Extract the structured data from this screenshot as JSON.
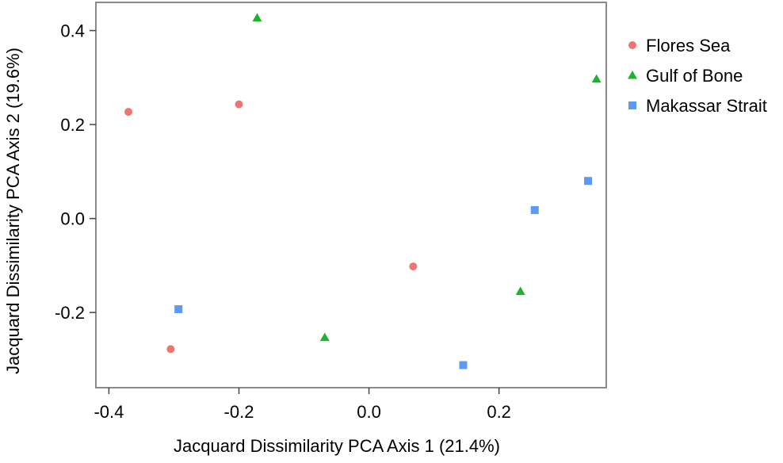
{
  "chart_data": {
    "type": "scatter",
    "title": "",
    "xlabel": "Jacquard Dissimilarity PCA Axis 1 (21.4%)",
    "ylabel": "Jacquard Dissimilarity  PCA Axis 2 (19.6%)",
    "xlim": [
      -0.42,
      0.365
    ],
    "ylim": [
      -0.36,
      0.46
    ],
    "xticks": [
      -0.4,
      -0.2,
      0.0,
      0.2
    ],
    "xtick_labels": [
      "-0.4",
      "-0.2",
      "0.0",
      "0.2"
    ],
    "yticks": [
      -0.2,
      0.0,
      0.2,
      0.4
    ],
    "ytick_labels": [
      "-0.2",
      "0.0",
      "0.2",
      "0.4"
    ],
    "grid": false,
    "legend_position": "right",
    "series": [
      {
        "name": "Flores Sea",
        "marker": "circle",
        "color": "#F07470",
        "points": [
          {
            "x": -0.37,
            "y": 0.227
          },
          {
            "x": -0.2,
            "y": 0.243
          },
          {
            "x": 0.068,
            "y": -0.102
          },
          {
            "x": -0.305,
            "y": -0.278
          }
        ]
      },
      {
        "name": "Gulf of Bone",
        "marker": "triangle",
        "color": "#1DB32E",
        "points": [
          {
            "x": -0.172,
            "y": 0.427
          },
          {
            "x": 0.35,
            "y": 0.297
          },
          {
            "x": 0.233,
            "y": -0.155
          },
          {
            "x": -0.068,
            "y": -0.253
          }
        ]
      },
      {
        "name": "Makassar Strait",
        "marker": "square",
        "color": "#5B9BF7",
        "points": [
          {
            "x": 0.337,
            "y": 0.08
          },
          {
            "x": 0.255,
            "y": 0.018
          },
          {
            "x": -0.293,
            "y": -0.193
          },
          {
            "x": 0.145,
            "y": -0.312
          }
        ]
      }
    ]
  }
}
